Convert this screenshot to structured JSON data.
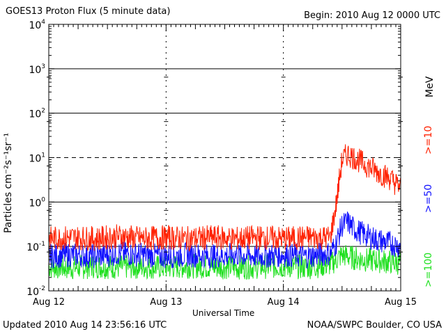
{
  "header": {
    "title": "GOES13 Proton Flux (5 minute data)",
    "begin": "Begin: 2010 Aug 12 0000 UTC"
  },
  "footer": {
    "updated": "Updated 2010 Aug 14 23:56:16 UTC",
    "credit": "NOAA/SWPC Boulder, CO USA"
  },
  "chart_data": {
    "type": "line",
    "title": "GOES13 Proton Flux (5 minute data)",
    "xlabel": "Universal Time",
    "ylabel": "Particles cm⁻²s⁻¹sr⁻¹",
    "yscale": "log",
    "ylim": [
      0.01,
      10000
    ],
    "y_ticks": [
      {
        "base": "10",
        "exp": "-2"
      },
      {
        "base": "10",
        "exp": "-1"
      },
      {
        "base": "10",
        "exp": "0"
      },
      {
        "base": "10",
        "exp": "1"
      },
      {
        "base": "10",
        "exp": "2"
      },
      {
        "base": "10",
        "exp": "3"
      },
      {
        "base": "10",
        "exp": "4"
      }
    ],
    "x_ticks": [
      "Aug 12",
      "Aug 13",
      "Aug 14",
      "Aug 15"
    ],
    "xlim": [
      "2010-08-12",
      "2010-08-15"
    ],
    "threshold_line": 10,
    "right_axis_unit": "MeV",
    "grid": true,
    "series": [
      {
        "name": ">=10",
        "color": "#ff2000",
        "x_days": [
          0,
          0.2,
          0.4,
          0.6,
          0.8,
          1.0,
          1.2,
          1.4,
          1.6,
          1.8,
          2.0,
          2.2,
          2.4,
          2.45,
          2.5,
          2.55,
          2.6,
          2.7,
          2.8,
          2.9,
          3.0
        ],
        "values": [
          0.15,
          0.16,
          0.15,
          0.17,
          0.15,
          0.16,
          0.15,
          0.16,
          0.15,
          0.16,
          0.15,
          0.16,
          0.16,
          0.9,
          9.0,
          12.0,
          10.0,
          7.0,
          4.8,
          3.5,
          2.1
        ]
      },
      {
        "name": ">=50",
        "color": "#1010ff",
        "x_days": [
          0,
          0.2,
          0.4,
          0.6,
          0.8,
          1.0,
          1.2,
          1.4,
          1.6,
          1.8,
          2.0,
          2.2,
          2.4,
          2.45,
          2.5,
          2.55,
          2.6,
          2.7,
          2.8,
          2.9,
          3.0
        ],
        "values": [
          0.06,
          0.065,
          0.06,
          0.07,
          0.065,
          0.06,
          0.065,
          0.06,
          0.065,
          0.06,
          0.065,
          0.06,
          0.07,
          0.12,
          0.3,
          0.35,
          0.25,
          0.18,
          0.14,
          0.12,
          0.1
        ]
      },
      {
        "name": ">=100",
        "color": "#20e020",
        "x_days": [
          0,
          0.2,
          0.4,
          0.6,
          0.8,
          1.0,
          1.2,
          1.4,
          1.6,
          1.8,
          2.0,
          2.2,
          2.4,
          2.45,
          2.5,
          2.55,
          2.6,
          2.7,
          2.8,
          2.9,
          3.0
        ],
        "values": [
          0.035,
          0.033,
          0.036,
          0.034,
          0.035,
          0.034,
          0.036,
          0.035,
          0.034,
          0.035,
          0.036,
          0.034,
          0.04,
          0.05,
          0.065,
          0.06,
          0.055,
          0.05,
          0.048,
          0.045,
          0.042
        ]
      }
    ]
  }
}
